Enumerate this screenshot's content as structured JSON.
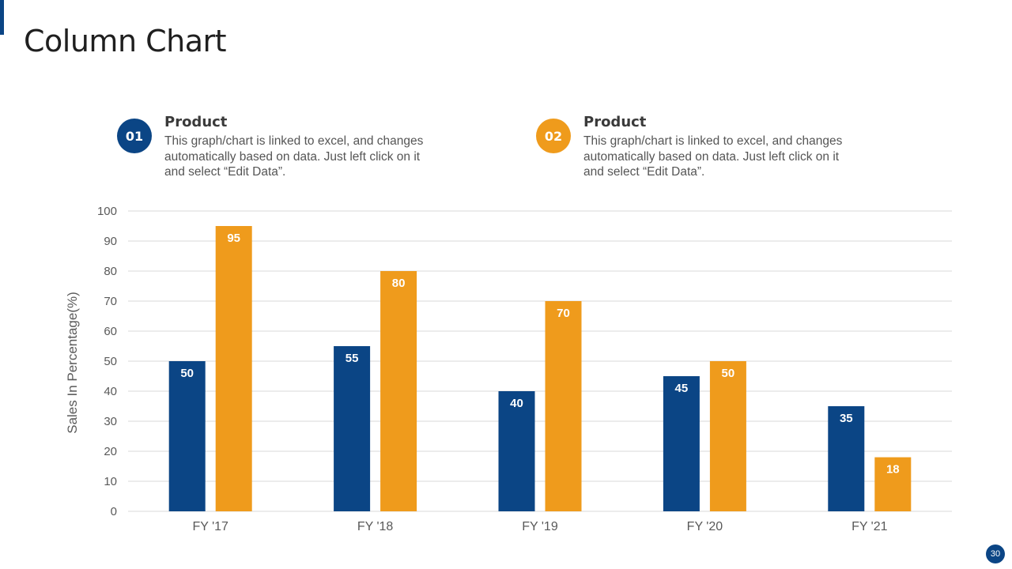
{
  "slide": {
    "title": "Column Chart",
    "page_number": "30"
  },
  "legend": [
    {
      "number": "01",
      "heading": "Product",
      "description": "This graph/chart is linked to excel, and changes automatically based on data. Just left click on it and select “Edit Data”.",
      "color": "#0b4585"
    },
    {
      "number": "02",
      "heading": "Product",
      "description": "This graph/chart is linked to excel, and changes automatically based on data. Just left click on it and select “Edit Data”.",
      "color": "#ef9b1c"
    }
  ],
  "chart_data": {
    "type": "bar",
    "title": "",
    "categories": [
      "FY '17",
      "FY '18",
      "FY '19",
      "FY '20",
      "FY '21"
    ],
    "series": [
      {
        "name": "Product 01",
        "values": [
          50,
          55,
          40,
          45,
          35
        ],
        "color": "#0b4585"
      },
      {
        "name": "Product 02",
        "values": [
          95,
          80,
          70,
          50,
          18
        ],
        "color": "#ef9b1c"
      }
    ],
    "xlabel": "",
    "ylabel": "Sales In Percentage(%)",
    "ylim": [
      0,
      100
    ],
    "yticks": [
      0,
      10,
      20,
      30,
      40,
      50,
      60,
      70,
      80,
      90,
      100
    ],
    "grid": true,
    "data_labels": true
  },
  "colors": {
    "accent": "#0b4585",
    "secondary": "#ef9b1c",
    "grid": "#d9d9d9",
    "axis_text": "#595959"
  }
}
